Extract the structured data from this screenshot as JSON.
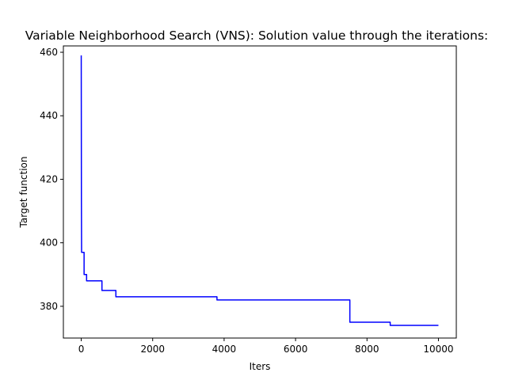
{
  "chart_data": {
    "type": "line",
    "title": "Variable Neighborhood Search (VNS): Solution value through the iterations:",
    "xlabel": "Iters",
    "ylabel": "Target function",
    "xlim": [
      -500,
      10500
    ],
    "ylim": [
      370,
      462
    ],
    "xticks": [
      0,
      2000,
      4000,
      6000,
      8000,
      10000
    ],
    "yticks": [
      380,
      400,
      420,
      440,
      460
    ],
    "grid": false,
    "line_style": "step",
    "series": [
      {
        "color": "#0000ff",
        "points": [
          {
            "x": 0,
            "y": 459
          },
          {
            "x": 5,
            "y": 413
          },
          {
            "x": 10,
            "y": 397
          },
          {
            "x": 80,
            "y": 397
          },
          {
            "x": 80,
            "y": 390
          },
          {
            "x": 150,
            "y": 390
          },
          {
            "x": 150,
            "y": 388
          },
          {
            "x": 580,
            "y": 388
          },
          {
            "x": 580,
            "y": 385
          },
          {
            "x": 970,
            "y": 385
          },
          {
            "x": 970,
            "y": 383
          },
          {
            "x": 3800,
            "y": 383
          },
          {
            "x": 3800,
            "y": 382
          },
          {
            "x": 7520,
            "y": 382
          },
          {
            "x": 7520,
            "y": 375
          },
          {
            "x": 8650,
            "y": 375
          },
          {
            "x": 8650,
            "y": 374
          },
          {
            "x": 10000,
            "y": 374
          }
        ]
      }
    ]
  }
}
